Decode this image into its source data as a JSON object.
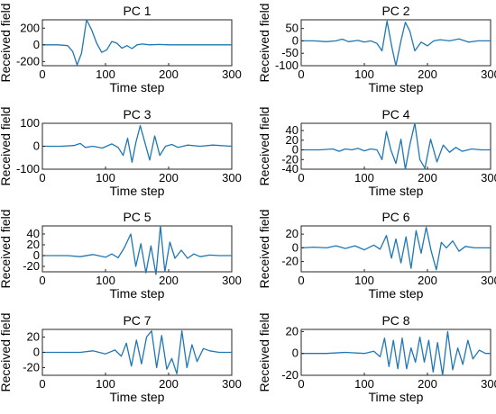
{
  "chart_data": [
    {
      "type": "line",
      "title": "PC 1",
      "xlabel": "Time step",
      "ylabel": "Received field",
      "xlim": [
        0,
        300
      ],
      "ylim": [
        -250,
        300
      ],
      "xticks": [
        0,
        100,
        200,
        300
      ],
      "yticks": [
        -200,
        0,
        200
      ],
      "series": [
        {
          "x": [
            0,
            25,
            40,
            48,
            55,
            62,
            70,
            78,
            86,
            94,
            102,
            110,
            118,
            126,
            134,
            142,
            150,
            158,
            170,
            185,
            200,
            230,
            260,
            300
          ],
          "values": [
            0,
            0,
            -10,
            -80,
            -240,
            -100,
            300,
            180,
            20,
            -90,
            -60,
            40,
            20,
            -40,
            -10,
            -45,
            0,
            10,
            0,
            5,
            0,
            0,
            0,
            0
          ]
        }
      ]
    },
    {
      "type": "line",
      "title": "PC 2",
      "xlabel": "Time step",
      "ylabel": "Received field",
      "xlim": [
        0,
        300
      ],
      "ylim": [
        -100,
        85
      ],
      "xticks": [
        0,
        100,
        200,
        300
      ],
      "yticks": [
        -100,
        -50,
        0,
        50
      ],
      "series": [
        {
          "x": [
            0,
            20,
            40,
            55,
            65,
            75,
            90,
            100,
            110,
            120,
            128,
            136,
            144,
            150,
            158,
            165,
            172,
            180,
            190,
            200,
            210,
            220,
            235,
            250,
            265,
            280,
            300
          ],
          "values": [
            0,
            0,
            -3,
            0,
            7,
            -3,
            2,
            -5,
            0,
            -10,
            -40,
            80,
            -30,
            -100,
            0,
            75,
            40,
            -40,
            -5,
            -20,
            0,
            5,
            0,
            8,
            -5,
            0,
            0
          ]
        }
      ]
    },
    {
      "type": "line",
      "title": "PC 3",
      "xlabel": "Time step",
      "ylabel": "Received field",
      "xlim": [
        0,
        300
      ],
      "ylim": [
        -100,
        100
      ],
      "xticks": [
        0,
        100,
        200,
        300
      ],
      "yticks": [
        -100,
        0,
        100
      ],
      "series": [
        {
          "x": [
            0,
            30,
            50,
            60,
            68,
            80,
            95,
            110,
            120,
            128,
            135,
            142,
            148,
            155,
            162,
            170,
            178,
            186,
            195,
            205,
            215,
            230,
            250,
            270,
            300
          ],
          "values": [
            0,
            0,
            3,
            12,
            -5,
            0,
            -8,
            10,
            -5,
            -40,
            35,
            -70,
            15,
            90,
            20,
            -60,
            45,
            -40,
            0,
            8,
            -5,
            5,
            0,
            5,
            0
          ]
        }
      ]
    },
    {
      "type": "line",
      "title": "PC 4",
      "xlabel": "Time step",
      "ylabel": "Received field",
      "xlim": [
        0,
        300
      ],
      "ylim": [
        -40,
        55
      ],
      "xticks": [
        0,
        100,
        200,
        300
      ],
      "yticks": [
        -40,
        -20,
        0,
        20,
        40
      ],
      "series": [
        {
          "x": [
            0,
            30,
            50,
            60,
            70,
            80,
            90,
            100,
            110,
            120,
            128,
            135,
            142,
            150,
            158,
            165,
            172,
            180,
            188,
            196,
            205,
            215,
            225,
            235,
            245,
            255,
            270,
            285,
            300
          ],
          "values": [
            0,
            0,
            2,
            -3,
            2,
            0,
            3,
            -2,
            2,
            0,
            -20,
            38,
            0,
            -28,
            22,
            -40,
            10,
            55,
            -20,
            -38,
            22,
            -25,
            10,
            -5,
            5,
            -3,
            2,
            0,
            0
          ]
        }
      ]
    },
    {
      "type": "line",
      "title": "PC 5",
      "xlabel": "Time step",
      "ylabel": "Received field",
      "xlim": [
        0,
        300
      ],
      "ylim": [
        -30,
        55
      ],
      "xticks": [
        0,
        100,
        200,
        300
      ],
      "yticks": [
        -20,
        0,
        20,
        40
      ],
      "series": [
        {
          "x": [
            0,
            40,
            60,
            80,
            100,
            110,
            120,
            130,
            140,
            148,
            156,
            164,
            172,
            180,
            187,
            194,
            202,
            210,
            220,
            230,
            240,
            250,
            265,
            280,
            300
          ],
          "values": [
            0,
            0,
            -2,
            2,
            -3,
            3,
            -4,
            15,
            40,
            -20,
            22,
            -32,
            18,
            -35,
            55,
            -30,
            25,
            -5,
            10,
            -5,
            3,
            -2,
            1,
            0,
            0
          ]
        }
      ]
    },
    {
      "type": "line",
      "title": "PC 6",
      "xlabel": "Time step",
      "ylabel": "Received field",
      "xlim": [
        0,
        300
      ],
      "ylim": [
        -35,
        32
      ],
      "xticks": [
        0,
        100,
        200,
        300
      ],
      "yticks": [
        -20,
        0,
        20
      ],
      "series": [
        {
          "x": [
            0,
            20,
            40,
            55,
            70,
            85,
            100,
            115,
            125,
            135,
            143,
            150,
            158,
            166,
            174,
            182,
            190,
            198,
            206,
            214,
            222,
            230,
            240,
            250,
            260,
            275,
            300
          ],
          "values": [
            0,
            1,
            0,
            3,
            -1,
            3,
            -3,
            4,
            -2,
            18,
            -15,
            13,
            -22,
            16,
            -30,
            25,
            -8,
            30,
            -5,
            -32,
            8,
            0,
            10,
            -5,
            2,
            0,
            0
          ]
        }
      ]
    },
    {
      "type": "line",
      "title": "PC 7",
      "xlabel": "Time step",
      "ylabel": "Received field",
      "xlim": [
        0,
        300
      ],
      "ylim": [
        -30,
        30
      ],
      "xticks": [
        0,
        100,
        200,
        300
      ],
      "yticks": [
        -20,
        0,
        20
      ],
      "series": [
        {
          "x": [
            0,
            30,
            60,
            80,
            100,
            115,
            125,
            133,
            141,
            149,
            157,
            165,
            173,
            181,
            189,
            197,
            205,
            213,
            221,
            229,
            237,
            245,
            255,
            265,
            280,
            300
          ],
          "values": [
            0,
            0,
            0,
            2,
            -2,
            3,
            -5,
            12,
            -18,
            16,
            -15,
            20,
            28,
            -20,
            22,
            -22,
            -8,
            -28,
            28,
            -20,
            10,
            -12,
            5,
            2,
            0,
            0
          ]
        }
      ]
    },
    {
      "type": "line",
      "title": "PC 8",
      "xlabel": "Time step",
      "ylabel": "Received field",
      "xlim": [
        0,
        300
      ],
      "ylim": [
        -20,
        22
      ],
      "xticks": [
        0,
        100,
        200,
        300
      ],
      "yticks": [
        -20,
        0,
        20
      ],
      "series": [
        {
          "x": [
            0,
            40,
            70,
            100,
            115,
            125,
            132,
            139,
            146,
            153,
            160,
            167,
            174,
            181,
            188,
            195,
            202,
            209,
            216,
            224,
            232,
            240,
            248,
            256,
            264,
            272,
            282,
            292,
            300
          ],
          "values": [
            0,
            0,
            1,
            0,
            2,
            -3,
            14,
            -12,
            12,
            -14,
            14,
            -14,
            5,
            -8,
            15,
            -8,
            12,
            -17,
            10,
            -20,
            20,
            -15,
            5,
            -10,
            12,
            -5,
            3,
            0,
            0
          ]
        }
      ]
    }
  ]
}
